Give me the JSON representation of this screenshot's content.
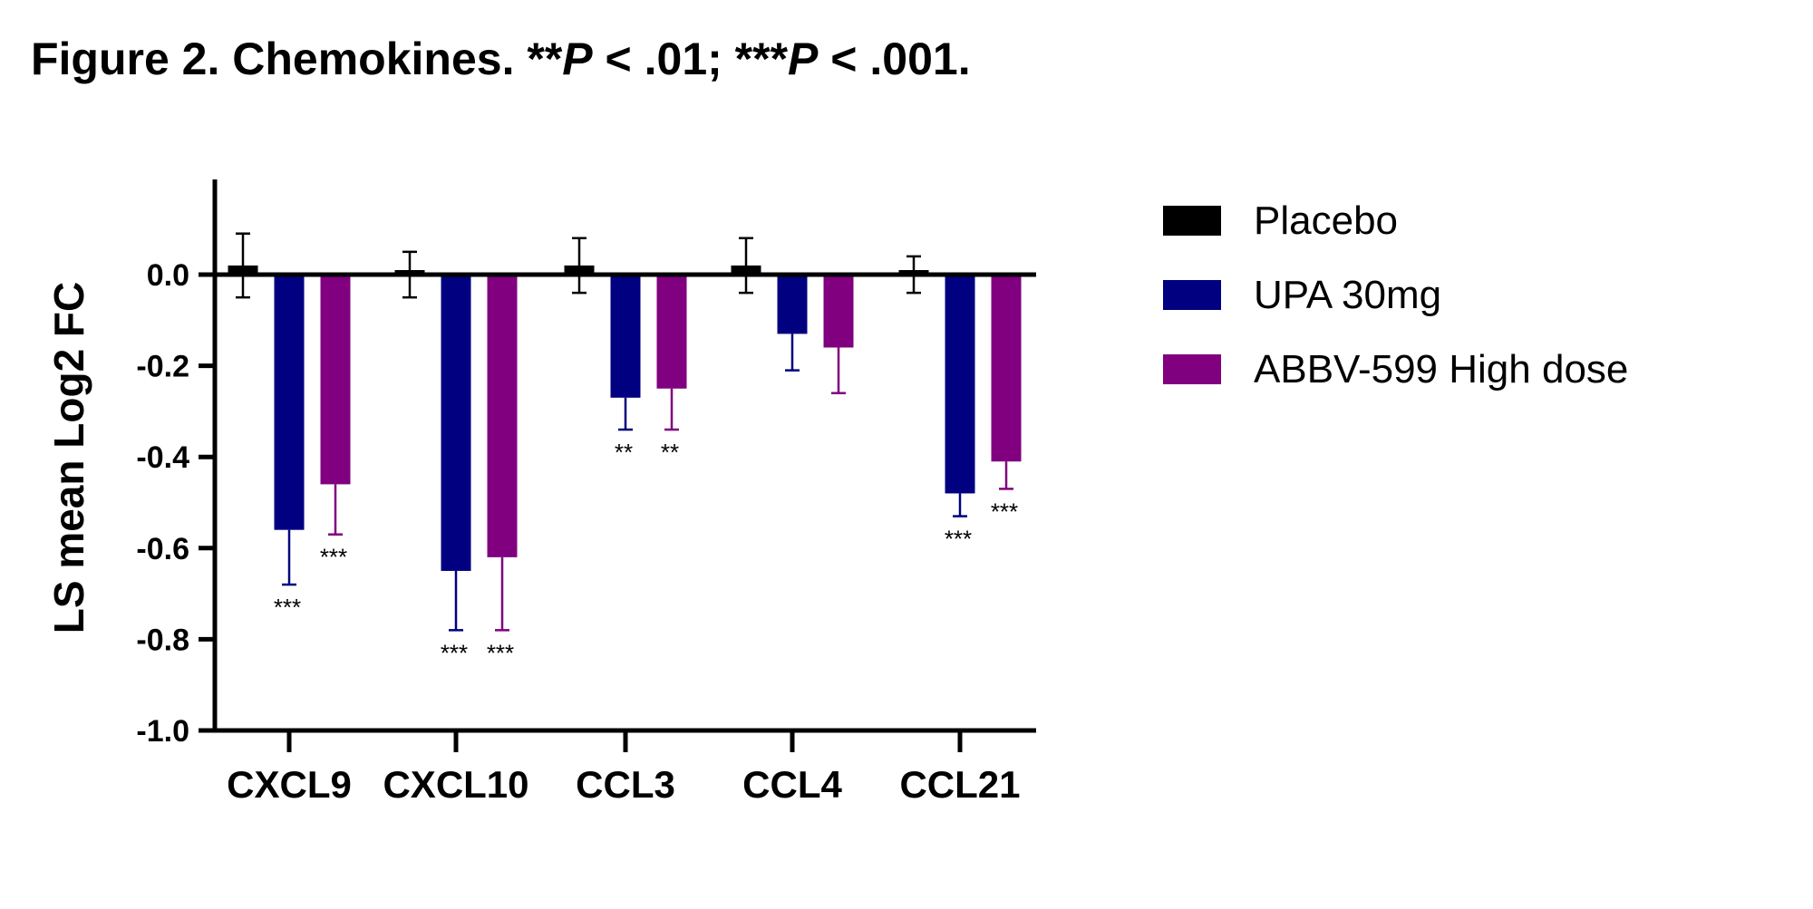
{
  "caption": {
    "prefix": "Figure 2. Chemokines. **",
    "p1": "P",
    "mid": " < .01; ***",
    "p2": "P",
    "suffix": " < .001."
  },
  "chart_data": {
    "type": "bar",
    "title": "Figure 2. Chemokines. **P < .01; ***P < .001.",
    "xlabel": "",
    "ylabel": "LS mean Log2 FC",
    "ylim": [
      -1.0,
      0.2
    ],
    "yticks": [
      0.0,
      -0.2,
      -0.4,
      -0.6,
      -0.8,
      -1.0
    ],
    "ytick_labels": [
      "0.0",
      "-0.2",
      "-0.4",
      "-0.6",
      "-0.8",
      "-1.0"
    ],
    "categories": [
      "CXCL9",
      "CXCL10",
      "CCL3",
      "CCL4",
      "CCL21"
    ],
    "legend_position": "right",
    "series": [
      {
        "name": "Placebo",
        "color": "#000000",
        "values": [
          0.02,
          0.0,
          0.02,
          0.02,
          0.0
        ],
        "error": [
          0.07,
          0.05,
          0.06,
          0.06,
          0.04
        ],
        "error_direction": "both",
        "significance": [
          "",
          "",
          "",
          "",
          ""
        ]
      },
      {
        "name": "UPA 30mg",
        "color": "#000080",
        "values": [
          -0.56,
          -0.65,
          -0.27,
          -0.13,
          -0.48
        ],
        "error": [
          0.12,
          0.13,
          0.07,
          0.08,
          0.05
        ],
        "error_direction": "down",
        "significance": [
          "***",
          "***",
          "**",
          "",
          "***"
        ]
      },
      {
        "name": "ABBV-599 High dose",
        "color": "#800080",
        "values": [
          -0.46,
          -0.62,
          -0.25,
          -0.16,
          -0.41
        ],
        "error": [
          0.11,
          0.16,
          0.09,
          0.1,
          0.06
        ],
        "error_direction": "down",
        "significance": [
          "***",
          "***",
          "**",
          "",
          "***"
        ]
      }
    ]
  }
}
